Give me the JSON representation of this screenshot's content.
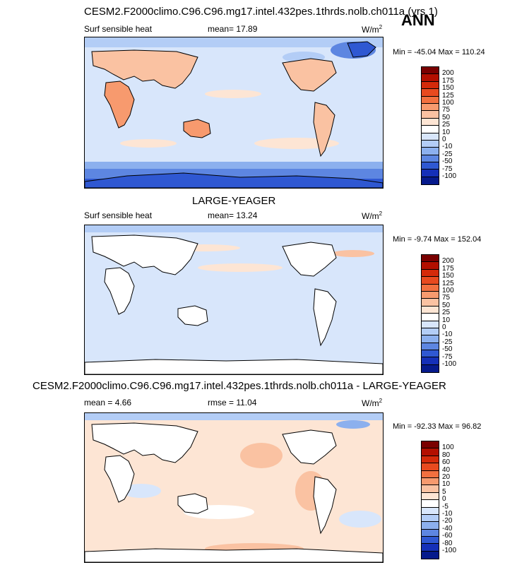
{
  "header": {
    "title": "CESM2.F2000climo.C96.C96.mg17.intel.432pes.1thrds.nolb.ch011a (yrs 1)",
    "season": "ANN"
  },
  "panels": [
    {
      "id": "test",
      "title": "",
      "left_label": "Surf sensible heat",
      "mid_label": "mean=  17.89",
      "units": "W/m",
      "units_sup": "2",
      "minmax": "Min = -45.04 Max = 110.24",
      "colorbar": {
        "levels": [
          "200",
          "175",
          "150",
          "125",
          "100",
          "75",
          "50",
          "25",
          "10",
          "0",
          "-10",
          "-25",
          "-50",
          "-75",
          "-100"
        ],
        "colors": [
          "#7a0000",
          "#b30f00",
          "#d42a0a",
          "#e84a1f",
          "#f2703f",
          "#f79a6e",
          "#fac2a2",
          "#fde5d4",
          "#ffffff",
          "#d8e6fb",
          "#b3cdf6",
          "#8cb0ee",
          "#5d86e1",
          "#2f58d2",
          "#1530b8",
          "#061a8c"
        ]
      }
    },
    {
      "id": "obs",
      "title": "LARGE-YEAGER",
      "left_label": "Surf sensible heat",
      "mid_label": "mean=  13.24",
      "units": "W/m",
      "units_sup": "2",
      "minmax": "Min = -9.74 Max = 152.04",
      "colorbar": {
        "levels": [
          "200",
          "175",
          "150",
          "125",
          "100",
          "75",
          "50",
          "25",
          "10",
          "0",
          "-10",
          "-25",
          "-50",
          "-75",
          "-100"
        ],
        "colors": [
          "#7a0000",
          "#b30f00",
          "#d42a0a",
          "#e84a1f",
          "#f2703f",
          "#f79a6e",
          "#fac2a2",
          "#fde5d4",
          "#ffffff",
          "#d8e6fb",
          "#b3cdf6",
          "#8cb0ee",
          "#5d86e1",
          "#2f58d2",
          "#1530b8",
          "#061a8c"
        ]
      }
    },
    {
      "id": "diff",
      "title": "CESM2.F2000climo.C96.C96.mg17.intel.432pes.1thrds.nolb.ch011a - LARGE-YEAGER",
      "left_label": "mean =   4.66",
      "mid_label": "rmse =  11.04",
      "units": "W/m",
      "units_sup": "2",
      "minmax": "Min = -92.33 Max =  96.82",
      "colorbar": {
        "levels": [
          "100",
          "80",
          "60",
          "40",
          "20",
          "10",
          "5",
          "0",
          "-5",
          "-10",
          "-20",
          "-40",
          "-60",
          "-80",
          "-100"
        ],
        "colors": [
          "#7a0000",
          "#b30f00",
          "#d42a0a",
          "#e84a1f",
          "#f2703f",
          "#f79a6e",
          "#fac2a2",
          "#fde5d4",
          "#ffffff",
          "#d8e6fb",
          "#b3cdf6",
          "#8cb0ee",
          "#5d86e1",
          "#2f58d2",
          "#1530b8",
          "#061a8c"
        ]
      }
    }
  ]
}
